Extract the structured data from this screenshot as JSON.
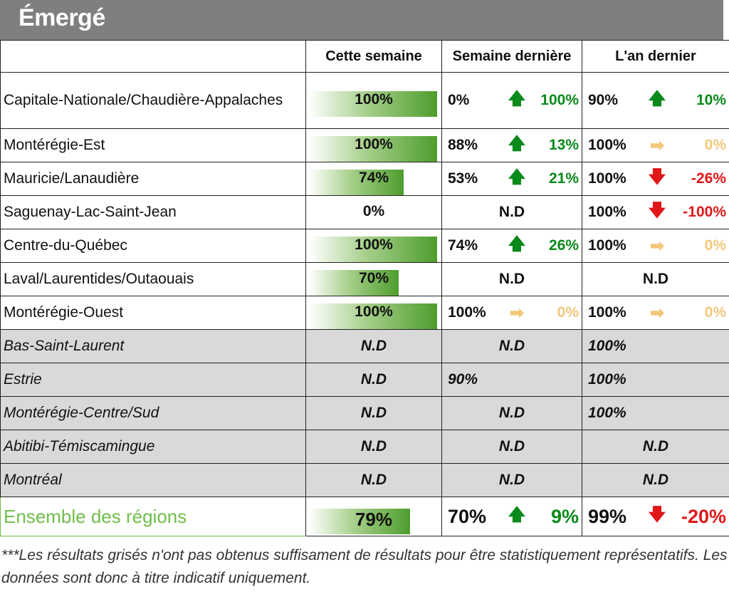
{
  "title": "Émergé",
  "headers": [
    "Cette semaine",
    "Semaine dernière",
    "L'an dernier"
  ],
  "rows": [
    {
      "region": "Capitale-Nationale/Chaudière-Appalaches",
      "cw": "100%",
      "cw_frac": 1.0,
      "lw": {
        "value": "0%",
        "arrow": "up",
        "delta": "100%"
      },
      "ly": {
        "value": "90%",
        "arrow": "up",
        "delta": "10%"
      }
    },
    {
      "region": "Montérégie-Est",
      "cw": "100%",
      "cw_frac": 1.0,
      "lw": {
        "value": "88%",
        "arrow": "up",
        "delta": "13%"
      },
      "ly": {
        "value": "100%",
        "arrow": "flat",
        "delta": "0%"
      }
    },
    {
      "region": "Mauricie/Lanaudière",
      "cw": "74%",
      "cw_frac": 0.74,
      "lw": {
        "value": "53%",
        "arrow": "up",
        "delta": "21%"
      },
      "ly": {
        "value": "100%",
        "arrow": "down",
        "delta": "-26%"
      }
    },
    {
      "region": "Saguenay-Lac-Saint-Jean",
      "cw": "0%",
      "cw_frac": 0,
      "lw": {
        "nd": "N.D"
      },
      "ly": {
        "value": "100%",
        "arrow": "down",
        "delta": "-100%"
      }
    },
    {
      "region": "Centre-du-Québec",
      "cw": "100%",
      "cw_frac": 1.0,
      "lw": {
        "value": "74%",
        "arrow": "up",
        "delta": "26%"
      },
      "ly": {
        "value": "100%",
        "arrow": "flat",
        "delta": "0%"
      }
    },
    {
      "region": "Laval/Laurentides/Outaouais",
      "cw": "70%",
      "cw_frac": 0.7,
      "lw": {
        "nd": "N.D"
      },
      "ly": {
        "nd": "N.D"
      }
    },
    {
      "region": "Montérégie-Ouest",
      "cw": "100%",
      "cw_frac": 1.0,
      "lw": {
        "value": "100%",
        "arrow": "flat",
        "delta": "0%"
      },
      "ly": {
        "value": "100%",
        "arrow": "flat",
        "delta": "0%"
      }
    }
  ],
  "grey_rows": [
    {
      "region": "Bas-Saint-Laurent",
      "cw": "N.D",
      "lw": {
        "nd": "N.D"
      },
      "ly": {
        "value": "100%"
      }
    },
    {
      "region": "Estrie",
      "cw": "N.D",
      "lw": {
        "value": "90%"
      },
      "ly": {
        "value": "100%"
      }
    },
    {
      "region": "Montérégie-Centre/Sud",
      "cw": "N.D",
      "lw": {
        "nd": "N.D"
      },
      "ly": {
        "value": "100%"
      }
    },
    {
      "region": "Abitibi-Témiscamingue",
      "cw": "N.D",
      "lw": {
        "nd": "N.D"
      },
      "ly": {
        "nd": "N.D"
      }
    },
    {
      "region": "Montréal",
      "cw": "N.D",
      "lw": {
        "nd": "N.D"
      },
      "ly": {
        "nd": "N.D"
      }
    }
  ],
  "total": {
    "region": "Ensemble des régions",
    "cw": "79%",
    "cw_frac": 0.79,
    "lw": {
      "value": "70%",
      "arrow": "up",
      "delta": "9%"
    },
    "ly": {
      "value": "99%",
      "arrow": "down",
      "delta": "-20%"
    }
  },
  "arrows": {
    "up": "🡅",
    "down": "🡇",
    "flat": "➡"
  },
  "colors": {
    "up": "#0a8a1a",
    "down": "#e01818",
    "flat": "#f2c77b",
    "header_bg": "#7f7f7f",
    "grey_row": "#d9d9d9",
    "total_label": "#6fbf4a",
    "bar": "#4e9d2d"
  },
  "footnote": "***Les résultats grisés n'ont pas obtenus suffisament de résultats pour être statistiquement représentatifs. Les données sont donc à titre indicatif uniquement."
}
